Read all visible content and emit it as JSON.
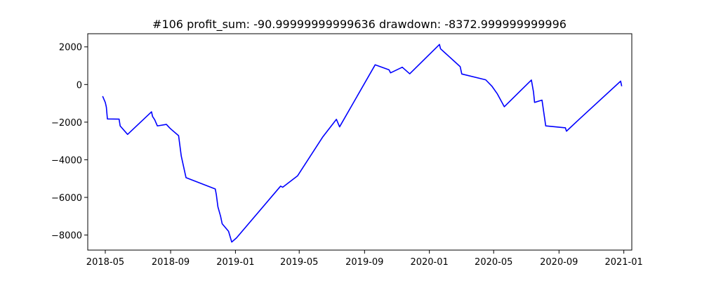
{
  "chart_data": {
    "type": "line",
    "title": "#106   profit_sum: -90.99999999999636 drawdown: -8372.999999999996",
    "xlabel": "",
    "ylabel": "",
    "x_axis": {
      "type": "date",
      "ticks": [
        "2018-05-01",
        "2018-09-01",
        "2019-01-01",
        "2019-05-01",
        "2019-09-01",
        "2020-01-01",
        "2020-05-01",
        "2020-09-01",
        "2021-01-01"
      ],
      "tick_labels": [
        "2018-05",
        "2018-09",
        "2019-01",
        "2019-05",
        "2019-09",
        "2020-01",
        "2020-05",
        "2020-09",
        "2021-01"
      ],
      "range": [
        "2018-03-29",
        "2021-01-16"
      ]
    },
    "y_axis": {
      "ticks": [
        2000,
        0,
        -2000,
        -4000,
        -6000,
        -8000
      ],
      "tick_labels": [
        "2000",
        "0",
        "−2000",
        "−4000",
        "−6000",
        "−8000"
      ],
      "range": [
        -8800,
        2700
      ]
    },
    "grid": false,
    "legend": "none",
    "series": [
      {
        "color": "#0000ff",
        "points": [
          [
            "2018-04-26",
            -620
          ],
          [
            "2018-05-01",
            -950
          ],
          [
            "2018-05-03",
            -1200
          ],
          [
            "2018-05-05",
            -1830
          ],
          [
            "2018-05-27",
            -1840
          ],
          [
            "2018-05-29",
            -2200
          ],
          [
            "2018-06-12",
            -2650
          ],
          [
            "2018-07-27",
            -1450
          ],
          [
            "2018-07-29",
            -1700
          ],
          [
            "2018-08-02",
            -1870
          ],
          [
            "2018-08-07",
            -2200
          ],
          [
            "2018-08-24",
            -2120
          ],
          [
            "2018-08-30",
            -2300
          ],
          [
            "2018-09-02",
            -2380
          ],
          [
            "2018-09-16",
            -2720
          ],
          [
            "2018-09-21",
            -3800
          ],
          [
            "2018-09-28",
            -4700
          ],
          [
            "2018-09-30",
            -4950
          ],
          [
            "2018-11-24",
            -5550
          ],
          [
            "2018-11-26",
            -5850
          ],
          [
            "2018-11-29",
            -6500
          ],
          [
            "2018-12-04",
            -7000
          ],
          [
            "2018-12-07",
            -7400
          ],
          [
            "2018-12-19",
            -7800
          ],
          [
            "2018-12-25",
            -8372
          ],
          [
            "2019-01-03",
            -8150
          ],
          [
            "2019-03-27",
            -5400
          ],
          [
            "2019-03-31",
            -5460
          ],
          [
            "2019-04-28",
            -4850
          ],
          [
            "2019-06-14",
            -2800
          ],
          [
            "2019-07-10",
            -1850
          ],
          [
            "2019-07-16",
            -2250
          ],
          [
            "2019-09-21",
            1050
          ],
          [
            "2019-10-17",
            780
          ],
          [
            "2019-10-20",
            620
          ],
          [
            "2019-11-11",
            920
          ],
          [
            "2019-11-25",
            570
          ],
          [
            "2020-01-20",
            2130
          ],
          [
            "2020-01-22",
            1900
          ],
          [
            "2020-02-28",
            950
          ],
          [
            "2020-03-02",
            560
          ],
          [
            "2020-04-16",
            250
          ],
          [
            "2020-04-28",
            -100
          ],
          [
            "2020-05-08",
            -500
          ],
          [
            "2020-05-21",
            -1180
          ],
          [
            "2020-07-11",
            240
          ],
          [
            "2020-07-15",
            -400
          ],
          [
            "2020-07-17",
            -950
          ],
          [
            "2020-07-31",
            -830
          ],
          [
            "2020-08-07",
            -2200
          ],
          [
            "2020-09-13",
            -2300
          ],
          [
            "2020-09-15",
            -2480
          ],
          [
            "2020-10-10",
            -1820
          ],
          [
            "2020-12-26",
            180
          ],
          [
            "2020-12-28",
            -91
          ]
        ]
      }
    ]
  }
}
